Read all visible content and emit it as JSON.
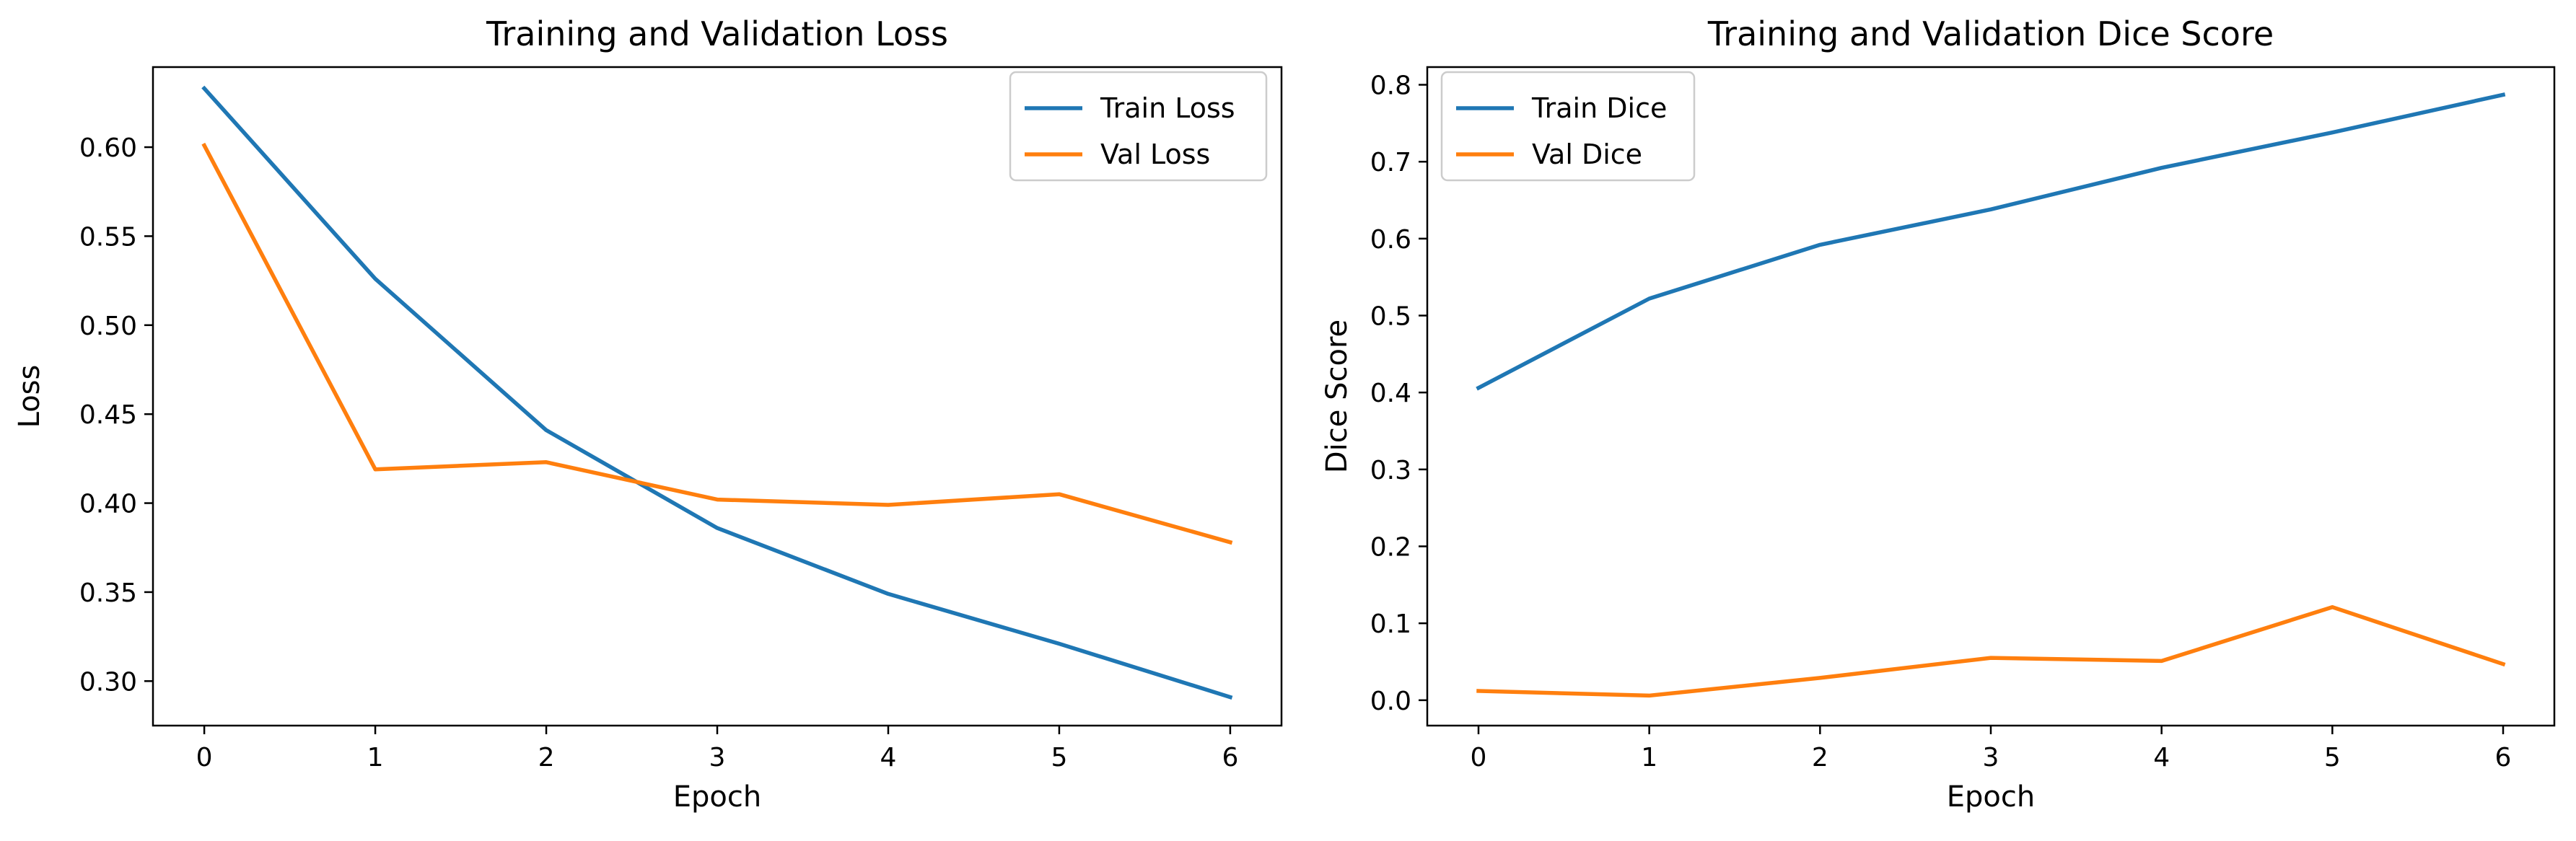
{
  "chart_data": [
    {
      "type": "line",
      "title": "Training and Validation Loss",
      "xlabel": "Epoch",
      "ylabel": "Loss",
      "x": [
        0,
        1,
        2,
        3,
        4,
        5,
        6
      ],
      "xlim": [
        -0.3,
        6.3
      ],
      "ylim": [
        0.275,
        0.645
      ],
      "xticks": [
        0,
        1,
        2,
        3,
        4,
        5,
        6
      ],
      "yticks": [
        0.3,
        0.35,
        0.4,
        0.45,
        0.5,
        0.55,
        0.6
      ],
      "ytick_labels": [
        "0.30",
        "0.35",
        "0.40",
        "0.45",
        "0.50",
        "0.55",
        "0.60"
      ],
      "grid": false,
      "legend_position": "top-right",
      "series": [
        {
          "name": "Train Loss",
          "color": "#1f77b4",
          "values": [
            0.633,
            0.526,
            0.441,
            0.386,
            0.349,
            0.321,
            0.291
          ]
        },
        {
          "name": "Val Loss",
          "color": "#ff7f0e",
          "values": [
            0.601,
            0.419,
            0.423,
            0.402,
            0.399,
            0.405,
            0.378
          ]
        }
      ]
    },
    {
      "type": "line",
      "title": "Training and Validation Dice Score",
      "xlabel": "Epoch",
      "ylabel": "Dice Score",
      "x": [
        0,
        1,
        2,
        3,
        4,
        5,
        6
      ],
      "xlim": [
        -0.3,
        6.3
      ],
      "ylim": [
        -0.033,
        0.823
      ],
      "xticks": [
        0,
        1,
        2,
        3,
        4,
        5,
        6
      ],
      "yticks": [
        0.0,
        0.1,
        0.2,
        0.3,
        0.4,
        0.5,
        0.6,
        0.7,
        0.8
      ],
      "ytick_labels": [
        "0.0",
        "0.1",
        "0.2",
        "0.3",
        "0.4",
        "0.5",
        "0.6",
        "0.7",
        "0.8"
      ],
      "grid": false,
      "legend_position": "top-left",
      "series": [
        {
          "name": "Train Dice",
          "color": "#1f77b4",
          "values": [
            0.406,
            0.522,
            0.592,
            0.638,
            0.692,
            0.738,
            0.787
          ]
        },
        {
          "name": "Val Dice",
          "color": "#ff7f0e",
          "values": [
            0.012,
            0.006,
            0.029,
            0.055,
            0.051,
            0.121,
            0.047
          ]
        }
      ]
    }
  ]
}
